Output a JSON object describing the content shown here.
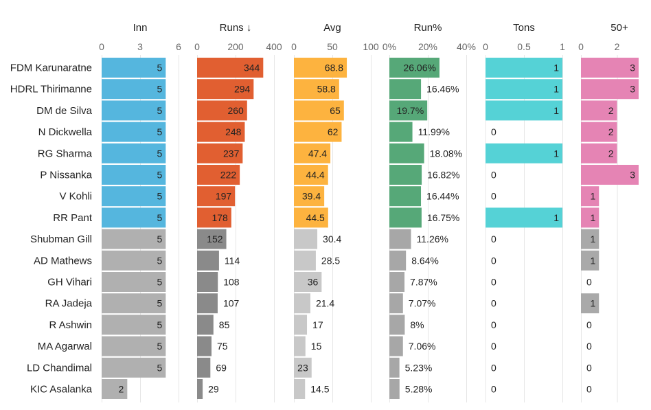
{
  "chart_data": {
    "type": "table",
    "columns": [
      {
        "key": "inn",
        "label": "Inn",
        "ticks": [
          "0",
          "3",
          "6"
        ],
        "tick_values": [
          0,
          3,
          6
        ],
        "domain": [
          0,
          6
        ]
      },
      {
        "key": "runs",
        "label": "Runs ↓",
        "ticks": [
          "0",
          "200",
          "400"
        ],
        "tick_values": [
          0,
          200,
          400
        ],
        "domain": [
          0,
          400
        ]
      },
      {
        "key": "avg",
        "label": "Avg",
        "ticks": [
          "0",
          "50",
          "100"
        ],
        "tick_values": [
          0,
          50,
          100
        ],
        "domain": [
          0,
          100
        ]
      },
      {
        "key": "runpct",
        "label": "Run%",
        "ticks": [
          "0%",
          "20%",
          "40%"
        ],
        "tick_values": [
          0,
          20,
          40
        ],
        "domain": [
          0,
          40
        ]
      },
      {
        "key": "tons",
        "label": "Tons",
        "ticks": [
          "0",
          "0.5",
          "1"
        ],
        "tick_values": [
          0,
          0.5,
          1
        ],
        "domain": [
          0,
          1
        ]
      },
      {
        "key": "fifties",
        "label": "50+",
        "ticks": [
          "0",
          "2"
        ],
        "tick_values": [
          0,
          2
        ],
        "domain": [
          0,
          3.2
        ]
      }
    ],
    "rows": [
      {
        "name": "FDM Karunaratne",
        "highlight": true,
        "inn": 5,
        "runs": 344,
        "avg": 68.8,
        "avg_label": "68.8",
        "runpct": 26.06,
        "runpct_label": "26.06%",
        "tons": 1,
        "fifties": 3
      },
      {
        "name": "HDRL Thirimanne",
        "highlight": true,
        "inn": 5,
        "runs": 294,
        "avg": 58.8,
        "avg_label": "58.8",
        "runpct": 16.46,
        "runpct_label": "16.46%",
        "tons": 1,
        "fifties": 3
      },
      {
        "name": "DM de Silva",
        "highlight": true,
        "inn": 5,
        "runs": 260,
        "avg": 65,
        "avg_label": "65",
        "runpct": 19.7,
        "runpct_label": "19.7%",
        "tons": 1,
        "fifties": 2
      },
      {
        "name": "N Dickwella",
        "highlight": true,
        "inn": 5,
        "runs": 248,
        "avg": 62,
        "avg_label": "62",
        "runpct": 11.99,
        "runpct_label": "11.99%",
        "tons": 0,
        "fifties": 2
      },
      {
        "name": "RG Sharma",
        "highlight": true,
        "inn": 5,
        "runs": 237,
        "avg": 47.4,
        "avg_label": "47.4",
        "runpct": 18.08,
        "runpct_label": "18.08%",
        "tons": 1,
        "fifties": 2
      },
      {
        "name": "P Nissanka",
        "highlight": true,
        "inn": 5,
        "runs": 222,
        "avg": 44.4,
        "avg_label": "44.4",
        "runpct": 16.82,
        "runpct_label": "16.82%",
        "tons": 0,
        "fifties": 3
      },
      {
        "name": "V Kohli",
        "highlight": true,
        "inn": 5,
        "runs": 197,
        "avg": 39.4,
        "avg_label": "39.4",
        "runpct": 16.44,
        "runpct_label": "16.44%",
        "tons": 0,
        "fifties": 1
      },
      {
        "name": "RR Pant",
        "highlight": true,
        "inn": 5,
        "runs": 178,
        "avg": 44.5,
        "avg_label": "44.5",
        "runpct": 16.75,
        "runpct_label": "16.75%",
        "tons": 1,
        "fifties": 1
      },
      {
        "name": "Shubman Gill",
        "highlight": false,
        "inn": 5,
        "runs": 152,
        "avg": 30.4,
        "avg_label": "30.4",
        "runpct": 11.26,
        "runpct_label": "11.26%",
        "tons": 0,
        "fifties": 1
      },
      {
        "name": "AD Mathews",
        "highlight": false,
        "inn": 5,
        "runs": 114,
        "avg": 28.5,
        "avg_label": "28.5",
        "runpct": 8.64,
        "runpct_label": "8.64%",
        "tons": 0,
        "fifties": 1
      },
      {
        "name": "GH Vihari",
        "highlight": false,
        "inn": 5,
        "runs": 108,
        "avg": 36,
        "avg_label": "36",
        "runpct": 7.87,
        "runpct_label": "7.87%",
        "tons": 0,
        "fifties": 0
      },
      {
        "name": "RA Jadeja",
        "highlight": false,
        "inn": 5,
        "runs": 107,
        "avg": 21.4,
        "avg_label": "21.4",
        "runpct": 7.07,
        "runpct_label": "7.07%",
        "tons": 0,
        "fifties": 1
      },
      {
        "name": "R Ashwin",
        "highlight": false,
        "inn": 5,
        "runs": 85,
        "avg": 17,
        "avg_label": "17",
        "runpct": 8,
        "runpct_label": "8%",
        "tons": 0,
        "fifties": 0
      },
      {
        "name": "MA Agarwal",
        "highlight": false,
        "inn": 5,
        "runs": 75,
        "avg": 15,
        "avg_label": "15",
        "runpct": 7.06,
        "runpct_label": "7.06%",
        "tons": 0,
        "fifties": 0
      },
      {
        "name": "LD Chandimal",
        "highlight": false,
        "inn": 5,
        "runs": 69,
        "avg": 23,
        "avg_label": "23",
        "runpct": 5.23,
        "runpct_label": "5.23%",
        "tons": 0,
        "fifties": 0
      },
      {
        "name": "KIC Asalanka",
        "highlight": false,
        "inn": 2,
        "runs": 29,
        "avg": 14.5,
        "avg_label": "14.5",
        "runpct": 5.28,
        "runpct_label": "5.28%",
        "tons": 0,
        "fifties": 0
      }
    ],
    "colors": {
      "inn": "#55b6de",
      "runs": "#e15f31",
      "avg": "#fdb33f",
      "runpct": "#56a878",
      "tons": "#55d2d6",
      "fifties": "#e584b4",
      "grey_inn": "#b0b0b0",
      "grey_runs": "#8a8a8a",
      "grey_avg": "#c8c8c8",
      "grey_runpct": "#a7a7a7",
      "grey_tons": "#b0b0b0",
      "grey_fifties": "#a9a9a9"
    },
    "grid": true,
    "legend": "none"
  }
}
